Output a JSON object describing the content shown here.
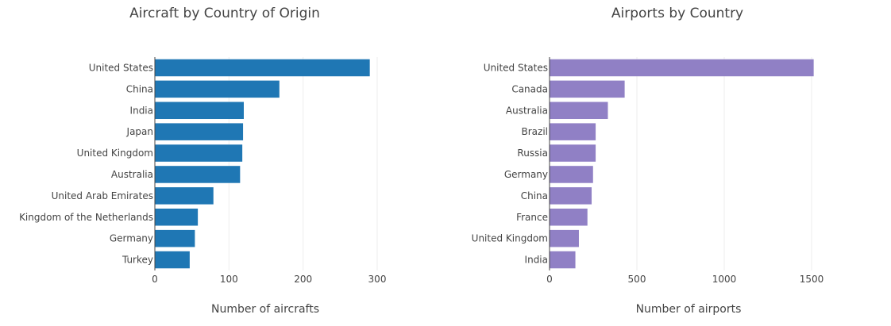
{
  "chart_data": [
    {
      "type": "bar",
      "orientation": "horizontal",
      "title": "Aircraft by Country of Origin",
      "xlabel": "Number of aircrafts",
      "ylabel": "",
      "xlim": [
        0,
        300
      ],
      "xticks": [
        "0",
        "100",
        "200",
        "300"
      ],
      "grid": true,
      "categories": [
        "United States",
        "China",
        "India",
        "Japan",
        "United Kingdom",
        "Australia",
        "United Arab Emirates",
        "Kingdom of the Netherlands",
        "Germany",
        "Turkey"
      ],
      "values": [
        290,
        168,
        120,
        119,
        118,
        115,
        79,
        58,
        54,
        47
      ],
      "color": "#1f77b4"
    },
    {
      "type": "bar",
      "orientation": "horizontal",
      "title": "Airports by Country",
      "xlabel": "Number of airports",
      "ylabel": "",
      "xlim": [
        0,
        1500
      ],
      "xticks": [
        "0",
        "500",
        "1000",
        "1500"
      ],
      "grid": true,
      "categories": [
        "United States",
        "Canada",
        "Australia",
        "Brazil",
        "Russia",
        "Germany",
        "China",
        "France",
        "United Kingdom",
        "India"
      ],
      "values": [
        1512,
        430,
        334,
        264,
        264,
        249,
        241,
        217,
        168,
        148
      ],
      "color": "#9080c5"
    }
  ]
}
